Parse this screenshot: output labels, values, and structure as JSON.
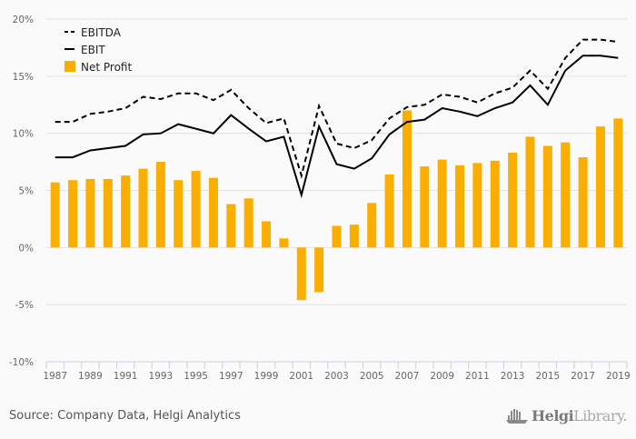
{
  "chart_data": {
    "type": "bar",
    "title": "",
    "xlabel": "",
    "ylabel": "",
    "ylim": [
      -10,
      20
    ],
    "yticks": [
      -10,
      -5,
      0,
      5,
      10,
      15,
      20
    ],
    "ytick_labels": [
      "-10%",
      "-5%",
      "0%",
      "5%",
      "10%",
      "15%",
      "20%"
    ],
    "y_unit": "%",
    "grid": true,
    "legend_position": "top-left",
    "categories": [
      "1987",
      "1988",
      "1989",
      "1990",
      "1991",
      "1992",
      "1993",
      "1994",
      "1995",
      "1996",
      "1997",
      "1998",
      "1999",
      "2000",
      "2001",
      "2002",
      "2003",
      "2004",
      "2005",
      "2006",
      "2007",
      "2008",
      "2009",
      "2010",
      "2011",
      "2012",
      "2013",
      "2014",
      "2015",
      "2016",
      "2017",
      "2018",
      "2019"
    ],
    "xtick_labels": [
      "1987",
      "1989",
      "1991",
      "1993",
      "1995",
      "1997",
      "1999",
      "2001",
      "2003",
      "2005",
      "2007",
      "2009",
      "2011",
      "2013",
      "2015",
      "2017",
      "2019"
    ],
    "series": [
      {
        "name": "EBITDA",
        "type": "line",
        "style": "dashed",
        "color": "#000000",
        "values": [
          11.0,
          11.0,
          11.7,
          11.9,
          12.2,
          13.2,
          13.0,
          13.5,
          13.5,
          12.9,
          13.8,
          12.2,
          10.9,
          11.3,
          6.3,
          12.4,
          9.1,
          8.7,
          9.4,
          11.3,
          12.3,
          12.5,
          13.4,
          13.2,
          12.7,
          13.5,
          14.0,
          15.5,
          13.9,
          16.6,
          18.2,
          18.2,
          18.0
        ]
      },
      {
        "name": "EBIT",
        "type": "line",
        "style": "solid",
        "color": "#000000",
        "values": [
          7.9,
          7.9,
          8.5,
          8.7,
          8.9,
          9.9,
          10.0,
          10.8,
          10.4,
          10.0,
          11.6,
          10.4,
          9.3,
          9.7,
          4.6,
          10.6,
          7.3,
          6.9,
          7.8,
          9.9,
          11.0,
          11.2,
          12.2,
          11.9,
          11.5,
          12.2,
          12.7,
          14.2,
          12.5,
          15.5,
          16.8,
          16.8,
          16.6
        ]
      },
      {
        "name": "Net Profit",
        "type": "bar",
        "color": "#f9ae00",
        "values": [
          5.7,
          5.9,
          6.0,
          6.0,
          6.3,
          6.9,
          7.5,
          5.9,
          6.7,
          6.1,
          3.8,
          4.3,
          2.3,
          0.8,
          -4.6,
          -3.9,
          1.9,
          2.0,
          3.9,
          6.4,
          12.0,
          7.1,
          7.7,
          7.2,
          7.4,
          7.6,
          8.3,
          9.7,
          8.9,
          9.2,
          7.9,
          10.6,
          11.3
        ]
      }
    ]
  },
  "footer": {
    "source": "Source: Company Data, Helgi Analytics",
    "logo_bold": "Helgi",
    "logo_light": "Library."
  }
}
